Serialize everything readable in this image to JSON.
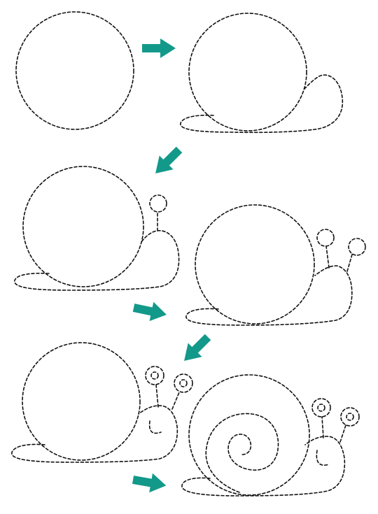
{
  "title": "",
  "colors": {
    "background": "#ffffff",
    "trace_stroke": "#111111",
    "arrow_fill": "#13998a"
  },
  "steps": [
    {
      "step": 1,
      "parts": [
        "shell"
      ]
    },
    {
      "step": 2,
      "parts": [
        "shell",
        "body"
      ]
    },
    {
      "step": 3,
      "parts": [
        "shell",
        "body",
        "back-tentacle"
      ]
    },
    {
      "step": 4,
      "parts": [
        "shell",
        "body",
        "back-tentacle",
        "front-tentacle"
      ]
    },
    {
      "step": 5,
      "parts": [
        "shell",
        "body",
        "tentacles",
        "eyes",
        "smile"
      ]
    },
    {
      "step": 6,
      "parts": [
        "shell",
        "spiral",
        "body",
        "tentacles",
        "eyes",
        "smile"
      ]
    }
  ],
  "arrows": [
    {
      "from": 1,
      "to": 2,
      "direction": "right"
    },
    {
      "from": 2,
      "to": 3,
      "direction": "down-left"
    },
    {
      "from": 3,
      "to": 4,
      "direction": "right"
    },
    {
      "from": 4,
      "to": 5,
      "direction": "down-left"
    },
    {
      "from": 5,
      "to": 6,
      "direction": "right"
    }
  ],
  "icon": "snail-drawing-steps"
}
